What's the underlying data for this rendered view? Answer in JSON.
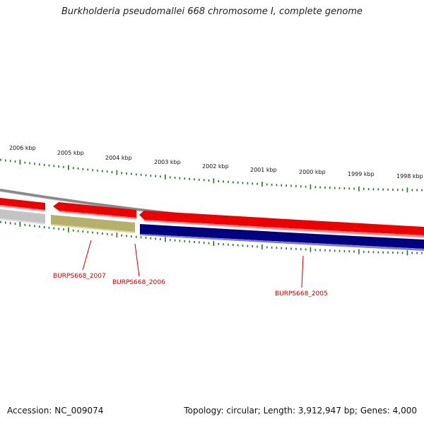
{
  "title": "Burkholderia pseudomallei 668 chromosome I, complete genome",
  "footer": {
    "accession": "Accession: NC_009074",
    "topology": "Topology: circular; Length: 3,912,947 bp; Genes: 4,000"
  },
  "kbp_labels": [
    "2006 kbp",
    "2005 kbp",
    "2004 kbp",
    "2003 kbp",
    "2002 kbp",
    "2001 kbp",
    "2000 kbp",
    "1999 kbp",
    "1998 kbp"
  ],
  "genes": [
    {
      "label": "BURPS668_2007"
    },
    {
      "label": "BURPS668_2006"
    },
    {
      "label": "BURPS668_2005"
    }
  ],
  "colors": {
    "forward_strand": "#ee0000",
    "reverse_gene_olive": "#b5b06a",
    "reverse_gene_navy": "#000080",
    "backbone": "#808080",
    "tick": "#1a7a1a",
    "label": "#cc0000"
  }
}
